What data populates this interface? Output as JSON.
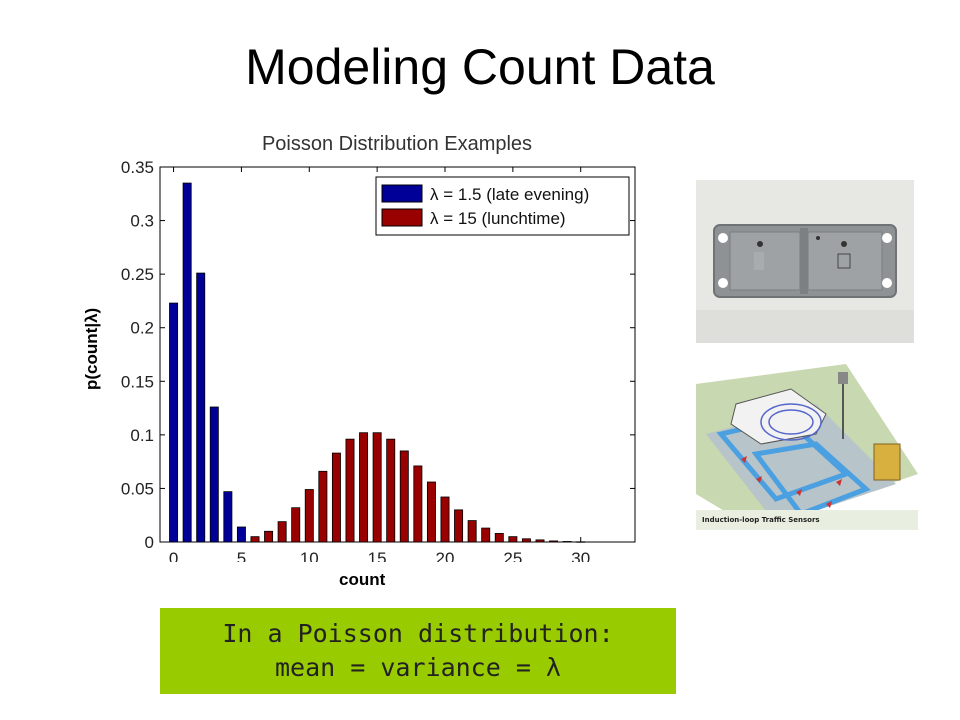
{
  "slide": {
    "title": "Modeling Count Data",
    "ylabel": "p(count|λ)",
    "xlabel": "count",
    "callout_line1": "In a Poisson distribution:",
    "callout_line2": "mean = variance = λ"
  },
  "chart_data": {
    "type": "bar",
    "title": "Poisson Distribution Examples",
    "xlim": [
      -1,
      34
    ],
    "ylim": [
      0,
      0.35
    ],
    "xticks": [
      "0",
      "5",
      "10",
      "15",
      "20",
      "25",
      "30"
    ],
    "yticks": [
      "0",
      "0.05",
      "0.1",
      "0.15",
      "0.2",
      "0.25",
      "0.3",
      "0.35"
    ],
    "legend_position": "top-right",
    "series": [
      {
        "name": "λ = 1.5 (late evening)",
        "color": "#000099",
        "x": [
          0,
          1,
          2,
          3,
          4,
          5,
          6
        ],
        "values": [
          0.223,
          0.335,
          0.251,
          0.126,
          0.047,
          0.014,
          0.004
        ]
      },
      {
        "name": "λ = 15 (lunchtime)",
        "color": "#990000",
        "x": [
          6,
          7,
          8,
          9,
          10,
          11,
          12,
          13,
          14,
          15,
          16,
          17,
          18,
          19,
          20,
          21,
          22,
          23,
          24,
          25,
          26,
          27,
          28,
          29,
          30
        ],
        "values": [
          0.005,
          0.01,
          0.019,
          0.032,
          0.049,
          0.066,
          0.083,
          0.096,
          0.102,
          0.102,
          0.096,
          0.085,
          0.071,
          0.056,
          0.042,
          0.03,
          0.02,
          0.013,
          0.008,
          0.005,
          0.003,
          0.002,
          0.001,
          0.0005,
          0.0002
        ]
      }
    ]
  },
  "images": {
    "sensor_photo": "sensor-unit-photo",
    "diagram_image": "induction-loop-diagram",
    "diagram_caption": "Induction-loop Traffic Sensors"
  }
}
